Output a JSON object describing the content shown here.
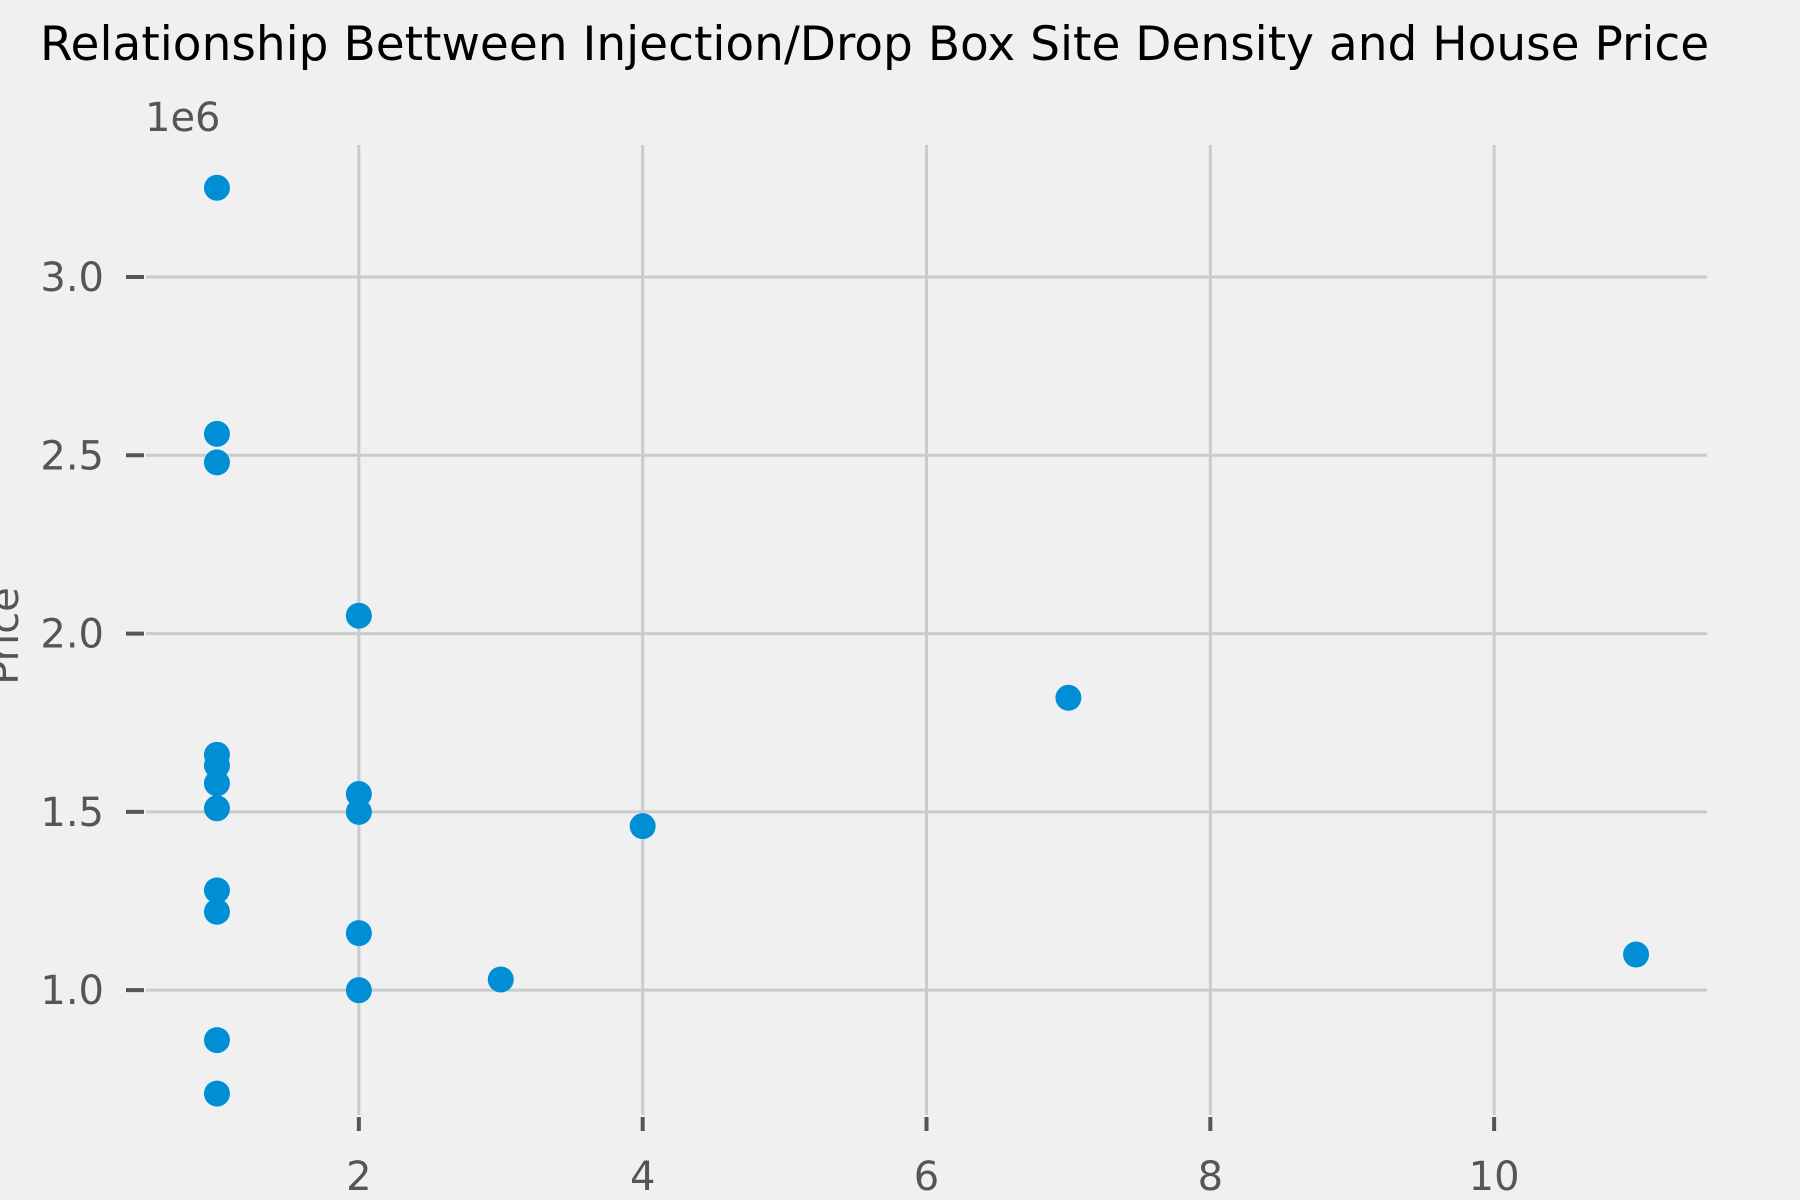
{
  "chart_data": {
    "type": "scatter",
    "title": "Relationship Bettween Injection/Drop Box Site Density and House Price",
    "xlabel": "",
    "ylabel": "Price",
    "y_offset_label": "1e6",
    "xlim": [
      0.5,
      11.5
    ],
    "ylim": [
      0.65,
      3.37
    ],
    "x_ticks": [
      2,
      4,
      6,
      8,
      10
    ],
    "x_tick_labels": [
      "2",
      "4",
      "6",
      "8",
      "10"
    ],
    "y_ticks": [
      1.0,
      1.5,
      2.0,
      2.5,
      3.0
    ],
    "y_tick_labels": [
      "1.0",
      "1.5",
      "2.0",
      "2.5",
      "3.0"
    ],
    "grid": true,
    "colors": {
      "background": "#f0f0f0",
      "marker": "#008fd5",
      "grid": "#cbcbcb"
    },
    "points": [
      {
        "x": 1,
        "y": 3.25
      },
      {
        "x": 1,
        "y": 2.56
      },
      {
        "x": 1,
        "y": 2.48
      },
      {
        "x": 1,
        "y": 1.66
      },
      {
        "x": 1,
        "y": 1.63
      },
      {
        "x": 1,
        "y": 1.58
      },
      {
        "x": 1,
        "y": 1.51
      },
      {
        "x": 1,
        "y": 1.28
      },
      {
        "x": 1,
        "y": 1.22
      },
      {
        "x": 1,
        "y": 0.86
      },
      {
        "x": 1,
        "y": 0.71
      },
      {
        "x": 2,
        "y": 2.05
      },
      {
        "x": 2,
        "y": 1.55
      },
      {
        "x": 2,
        "y": 1.5
      },
      {
        "x": 2,
        "y": 1.16
      },
      {
        "x": 2,
        "y": 1.0
      },
      {
        "x": 3,
        "y": 1.03
      },
      {
        "x": 4,
        "y": 1.46
      },
      {
        "x": 7,
        "y": 1.82
      },
      {
        "x": 11,
        "y": 1.1
      }
    ]
  }
}
